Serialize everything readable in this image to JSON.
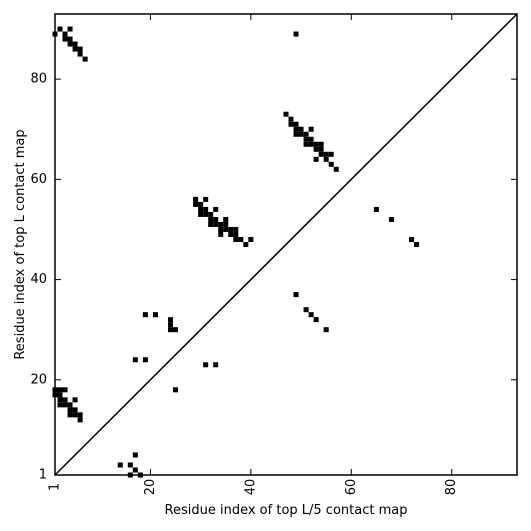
{
  "chart_data": {
    "type": "heatmap",
    "xlabel": "Residue index of top L/5 contact map",
    "ylabel": "Residue index of top L contact map",
    "xlim": [
      1,
      93
    ],
    "ylim": [
      1,
      93
    ],
    "x_ticks": [
      1,
      20,
      40,
      60,
      80
    ],
    "y_ticks": [
      1,
      20,
      40,
      60,
      80
    ],
    "x_tick_labels": [
      "1",
      "20",
      "40",
      "60",
      "80"
    ],
    "y_tick_labels": [
      "1",
      "20",
      "40",
      "60",
      "80"
    ],
    "diagonal": true,
    "cell_color": "#000000",
    "contacts_upper_L5": [
      [
        1,
        89
      ],
      [
        2,
        90
      ],
      [
        3,
        89
      ],
      [
        3,
        88
      ],
      [
        4,
        88
      ],
      [
        4,
        87
      ],
      [
        4,
        90
      ],
      [
        5,
        87
      ],
      [
        5,
        86
      ],
      [
        6,
        86
      ],
      [
        6,
        85
      ],
      [
        7,
        84
      ],
      [
        49,
        89
      ],
      [
        29,
        56
      ],
      [
        29,
        55
      ],
      [
        30,
        55
      ],
      [
        30,
        54
      ],
      [
        30,
        53
      ],
      [
        31,
        54
      ],
      [
        31,
        53
      ],
      [
        31,
        56
      ],
      [
        32,
        53
      ],
      [
        32,
        52
      ],
      [
        32,
        51
      ],
      [
        33,
        52
      ],
      [
        33,
        51
      ],
      [
        33,
        54
      ],
      [
        34,
        51
      ],
      [
        34,
        50
      ],
      [
        34,
        49
      ],
      [
        35,
        52
      ],
      [
        35,
        51
      ],
      [
        35,
        50
      ],
      [
        36,
        50
      ],
      [
        36,
        49
      ],
      [
        37,
        50
      ],
      [
        37,
        49
      ],
      [
        37,
        48
      ],
      [
        38,
        48
      ],
      [
        39,
        47
      ],
      [
        40,
        48
      ],
      [
        47,
        73
      ],
      [
        48,
        72
      ],
      [
        48,
        71
      ],
      [
        49,
        71
      ],
      [
        49,
        70
      ],
      [
        49,
        69
      ],
      [
        50,
        70
      ],
      [
        50,
        69
      ],
      [
        51,
        69
      ],
      [
        51,
        68
      ],
      [
        51,
        67
      ],
      [
        52,
        70
      ],
      [
        52,
        68
      ],
      [
        52,
        67
      ],
      [
        53,
        67
      ],
      [
        53,
        66
      ],
      [
        53,
        64
      ],
      [
        54,
        67
      ],
      [
        54,
        66
      ],
      [
        54,
        65
      ],
      [
        55,
        65
      ],
      [
        55,
        64
      ],
      [
        56,
        65
      ],
      [
        56,
        63
      ],
      [
        57,
        62
      ],
      [
        65,
        54
      ],
      [
        68,
        52
      ],
      [
        72,
        48
      ],
      [
        73,
        47
      ]
    ],
    "contacts_lower_L": [
      [
        1,
        18
      ],
      [
        1,
        17
      ],
      [
        2,
        18
      ],
      [
        2,
        17
      ],
      [
        2,
        16
      ],
      [
        2,
        15
      ],
      [
        3,
        18
      ],
      [
        3,
        16
      ],
      [
        3,
        15
      ],
      [
        4,
        15
      ],
      [
        4,
        14
      ],
      [
        4,
        13
      ],
      [
        5,
        16
      ],
      [
        5,
        14
      ],
      [
        5,
        13
      ],
      [
        6,
        13
      ],
      [
        6,
        12
      ],
      [
        14,
        3
      ],
      [
        16,
        3
      ],
      [
        16,
        1
      ],
      [
        17,
        5
      ],
      [
        17,
        2
      ],
      [
        18,
        1
      ],
      [
        17,
        24
      ],
      [
        19,
        24
      ],
      [
        19,
        33
      ],
      [
        21,
        33
      ],
      [
        24,
        32
      ],
      [
        24,
        31
      ],
      [
        24,
        30
      ],
      [
        25,
        30
      ],
      [
        25,
        18
      ],
      [
        31,
        23
      ],
      [
        33,
        23
      ],
      [
        49,
        37
      ],
      [
        51,
        34
      ],
      [
        52,
        33
      ],
      [
        53,
        32
      ],
      [
        55,
        30
      ]
    ]
  }
}
